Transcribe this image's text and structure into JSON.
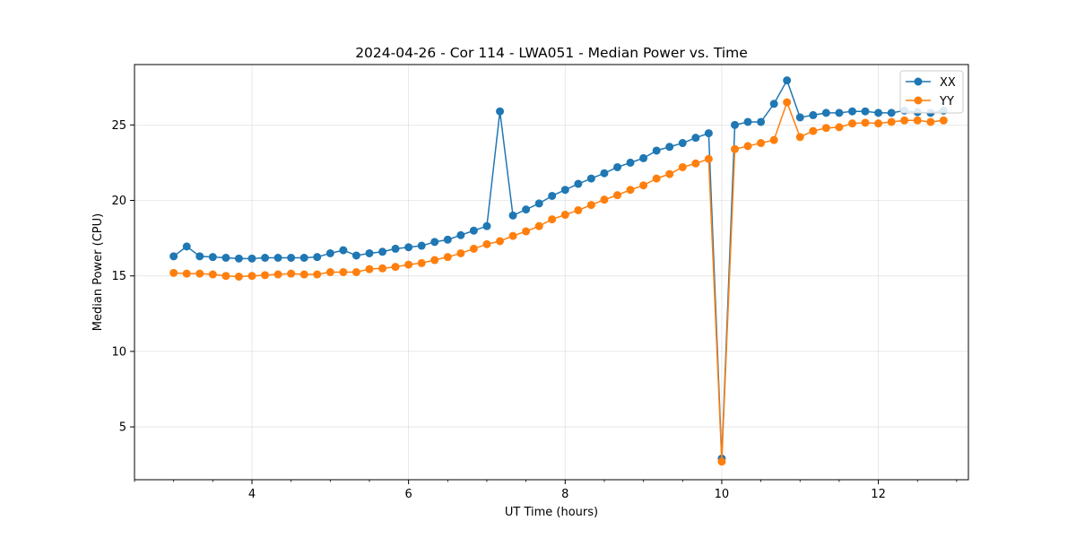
{
  "chart_data": {
    "type": "line",
    "title": "2024-04-26 - Cor 114 - LWA051 - Median Power vs. Time",
    "xlabel": "UT Time (hours)",
    "ylabel": "Median Power (CPU)",
    "xlim": [
      2.5,
      13.15
    ],
    "ylim": [
      1.5,
      29
    ],
    "xticks": [
      4,
      6,
      8,
      10,
      12
    ],
    "yticks": [
      5,
      10,
      15,
      20,
      25
    ],
    "grid": true,
    "legend_position": "upper right",
    "x": [
      3.0,
      3.167,
      3.333,
      3.5,
      3.667,
      3.833,
      4.0,
      4.167,
      4.333,
      4.5,
      4.667,
      4.833,
      5.0,
      5.167,
      5.333,
      5.5,
      5.667,
      5.833,
      6.0,
      6.167,
      6.333,
      6.5,
      6.667,
      6.833,
      7.0,
      7.167,
      7.333,
      7.5,
      7.667,
      7.833,
      8.0,
      8.167,
      8.333,
      8.5,
      8.667,
      8.833,
      9.0,
      9.167,
      9.333,
      9.5,
      9.667,
      9.833,
      10.0,
      10.167,
      10.333,
      10.5,
      10.667,
      10.833,
      11.0,
      11.167,
      11.333,
      11.5,
      11.667,
      11.833,
      12.0,
      12.167,
      12.333,
      12.5,
      12.667,
      12.833
    ],
    "series": [
      {
        "name": "XX",
        "color": "#1f77b4",
        "values": [
          16.3,
          16.95,
          16.3,
          16.25,
          16.2,
          16.15,
          16.15,
          16.2,
          16.2,
          16.2,
          16.2,
          16.25,
          16.5,
          16.7,
          16.35,
          16.5,
          16.6,
          16.8,
          16.9,
          17.0,
          17.25,
          17.4,
          17.7,
          18.0,
          18.3,
          25.9,
          19.0,
          19.4,
          19.8,
          20.3,
          20.7,
          21.1,
          21.45,
          21.8,
          22.2,
          22.5,
          22.8,
          23.3,
          23.55,
          23.8,
          24.15,
          24.45,
          2.9,
          25.0,
          25.2,
          25.2,
          26.4,
          27.95,
          25.5,
          25.65,
          25.8,
          25.8,
          25.9,
          25.9,
          25.8,
          25.8,
          25.95,
          25.85,
          25.8,
          25.95
        ]
      },
      {
        "name": "YY",
        "color": "#ff7f0e",
        "values": [
          15.2,
          15.15,
          15.15,
          15.1,
          15.0,
          14.95,
          15.0,
          15.05,
          15.1,
          15.15,
          15.1,
          15.1,
          15.25,
          15.25,
          15.25,
          15.45,
          15.5,
          15.6,
          15.75,
          15.85,
          16.05,
          16.25,
          16.5,
          16.8,
          17.1,
          17.3,
          17.65,
          17.95,
          18.3,
          18.75,
          19.05,
          19.35,
          19.7,
          20.05,
          20.35,
          20.7,
          21.0,
          21.45,
          21.75,
          22.2,
          22.45,
          22.75,
          2.7,
          23.4,
          23.6,
          23.8,
          24.0,
          26.5,
          24.2,
          24.6,
          24.8,
          24.85,
          25.1,
          25.15,
          25.1,
          25.2,
          25.3,
          25.3,
          25.2,
          25.3
        ]
      }
    ]
  }
}
